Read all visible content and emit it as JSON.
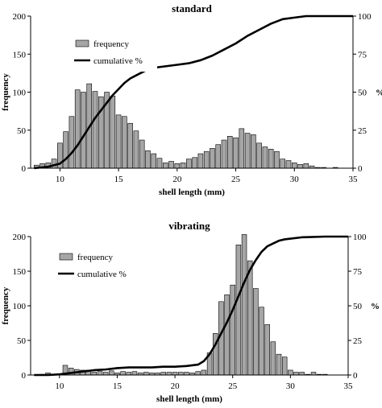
{
  "chart_data": [
    {
      "type": "bar",
      "title": "standard",
      "xlabel": "shell length (mm)",
      "ylabel": "frequency",
      "y2label": "%",
      "xlim": [
        7.5,
        35
      ],
      "ylim": [
        0,
        200
      ],
      "y2lim": [
        0,
        100
      ],
      "xticks": [
        10,
        15,
        20,
        25,
        30,
        35
      ],
      "yticks": [
        0,
        50,
        100,
        150,
        200
      ],
      "y2ticks": [
        0,
        25,
        50,
        75,
        100
      ],
      "grid": false,
      "legend_position": "top-left",
      "series": [
        {
          "name": "frequency",
          "type": "bar",
          "color": "#a6a6a6",
          "bin_width": 0.5,
          "x": [
            8,
            8.5,
            9,
            9.5,
            10,
            10.5,
            11,
            11.5,
            12,
            12.5,
            13,
            13.5,
            14,
            14.5,
            15,
            15.5,
            16,
            16.5,
            17,
            17.5,
            18,
            18.5,
            19,
            19.5,
            20,
            20.5,
            21,
            21.5,
            22,
            22.5,
            23,
            23.5,
            24,
            24.5,
            25,
            25.5,
            26,
            26.5,
            27,
            27.5,
            28,
            28.5,
            29,
            29.5,
            30,
            30.5,
            31,
            31.5,
            32,
            32.5,
            33,
            33.5,
            34
          ],
          "values": [
            4,
            6,
            7,
            12,
            33,
            48,
            68,
            103,
            100,
            111,
            101,
            94,
            100,
            95,
            70,
            68,
            59,
            49,
            37,
            23,
            19,
            13,
            7,
            9,
            6,
            7,
            12,
            14,
            19,
            22,
            26,
            31,
            37,
            42,
            40,
            52,
            46,
            44,
            33,
            28,
            25,
            22,
            12,
            10,
            7,
            5,
            6,
            3,
            1,
            1,
            0,
            1,
            0
          ]
        },
        {
          "name": "cumulative %",
          "type": "line",
          "axis": "right",
          "color": "#000000",
          "x": [
            7.8,
            9,
            10,
            10.5,
            11,
            11.5,
            12,
            12.5,
            13,
            13.5,
            14,
            14.5,
            15,
            15.5,
            16,
            16.5,
            17,
            17.5,
            18,
            19,
            20,
            21,
            22,
            23,
            24,
            25,
            26,
            27,
            28,
            29,
            30,
            31,
            32,
            33,
            35
          ],
          "values": [
            0,
            1,
            3,
            6,
            10,
            15,
            21,
            27,
            33,
            38,
            43,
            48,
            52,
            56,
            59,
            61,
            63,
            65,
            66,
            67,
            68,
            69,
            71,
            74,
            78,
            82,
            87,
            91,
            95,
            98,
            99,
            100,
            100,
            100,
            100
          ]
        }
      ]
    },
    {
      "type": "bar",
      "title": "vibrating",
      "xlabel": "shell length (mm)",
      "ylabel": "frequency",
      "y2label": "%",
      "xlim": [
        7.5,
        35
      ],
      "ylim": [
        0,
        200
      ],
      "y2lim": [
        0,
        100
      ],
      "xticks": [
        10,
        15,
        20,
        25,
        30,
        35
      ],
      "yticks": [
        0,
        50,
        100,
        150,
        200
      ],
      "y2ticks": [
        0,
        25,
        50,
        75,
        100
      ],
      "grid": false,
      "legend_position": "top-left",
      "series": [
        {
          "name": "frequency",
          "type": "bar",
          "color": "#a6a6a6",
          "bin_width": 0.5,
          "x": [
            8,
            8.5,
            9,
            9.5,
            10,
            10.5,
            11,
            11.5,
            12,
            12.5,
            13,
            13.5,
            14,
            14.5,
            15,
            15.5,
            16,
            16.5,
            17,
            17.5,
            18,
            18.5,
            19,
            19.5,
            20,
            20.5,
            21,
            21.5,
            22,
            22.5,
            23,
            23.5,
            24,
            24.5,
            25,
            25.5,
            26,
            26.5,
            27,
            27.5,
            28,
            28.5,
            29,
            29.5,
            30,
            30.5,
            31,
            31.5,
            32,
            32.5,
            33
          ],
          "values": [
            0,
            1,
            3,
            1,
            2,
            14,
            10,
            8,
            7,
            7,
            4,
            5,
            4,
            6,
            3,
            5,
            4,
            5,
            3,
            4,
            3,
            3,
            4,
            4,
            4,
            4,
            4,
            3,
            5,
            7,
            32,
            60,
            106,
            116,
            130,
            188,
            203,
            165,
            125,
            98,
            73,
            48,
            30,
            26,
            7,
            4,
            4,
            1,
            4,
            1,
            1
          ]
        },
        {
          "name": "cumulative %",
          "type": "line",
          "axis": "right",
          "color": "#000000",
          "x": [
            7.8,
            9,
            10,
            11,
            12,
            13,
            14,
            15,
            16,
            17,
            18,
            19,
            20,
            21,
            22,
            22.5,
            23,
            23.5,
            24,
            24.5,
            25,
            25.5,
            26,
            26.5,
            27,
            27.5,
            28,
            28.5,
            29,
            29.5,
            30,
            31,
            33,
            35
          ],
          "values": [
            0,
            0,
            0.5,
            1.5,
            2.5,
            3.5,
            4,
            5,
            5.5,
            5.5,
            5.5,
            6,
            6,
            6.5,
            7.5,
            10,
            15,
            22,
            30,
            38,
            47,
            57,
            67,
            76,
            83,
            89,
            93,
            95,
            97,
            98,
            98.5,
            99.5,
            100,
            100
          ]
        }
      ]
    }
  ]
}
